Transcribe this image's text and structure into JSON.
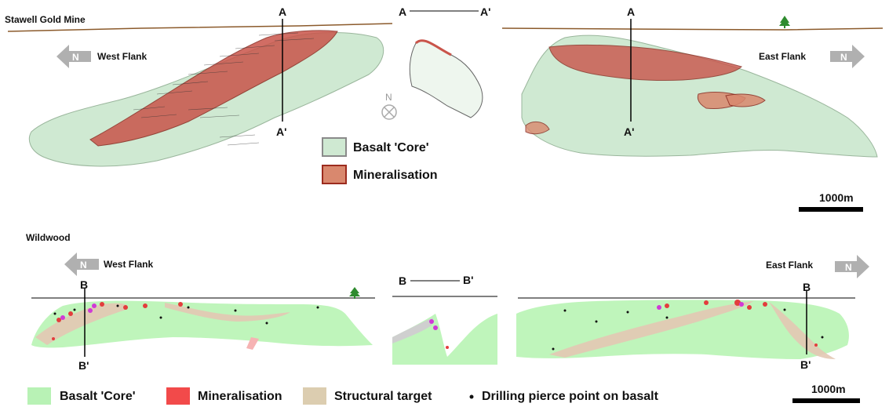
{
  "top": {
    "title": "Stawell Gold Mine",
    "west_flank": "West Flank",
    "east_flank": "East Flank",
    "section_a": "A",
    "section_a_prime": "A'",
    "north": "N",
    "scale": "1000m",
    "legend": [
      {
        "label": "Basalt 'Core'",
        "color": "#cfe9d2",
        "border": "#8a8a8a"
      },
      {
        "label": "Mineralisation",
        "color": "#d9886e",
        "border": "#9c2b1e"
      }
    ]
  },
  "bottom": {
    "title": "Wildwood",
    "west_flank": "West Flank",
    "east_flank": "East Flank",
    "section_b": "B",
    "section_b_prime": "B'",
    "north": "N",
    "scale": "1000m",
    "legend": [
      {
        "label": "Basalt 'Core'",
        "color": "#b8f2b5"
      },
      {
        "label": "Mineralisation",
        "color": "#f24a4a"
      },
      {
        "label": "Structural target",
        "color": "#dccdb0"
      },
      {
        "label": "Drilling pierce point on basalt",
        "color": "#111111"
      }
    ]
  },
  "colors": {
    "basalt_top": "#cfe9d2",
    "mineral_top": "#c9544a",
    "basalt_bottom": "#bff5bb",
    "mineral_bottom": "#e33d3d",
    "structural": "#e3c8b4",
    "topo_line": "#8b5a2b",
    "arrow": "#b0b0b0"
  }
}
